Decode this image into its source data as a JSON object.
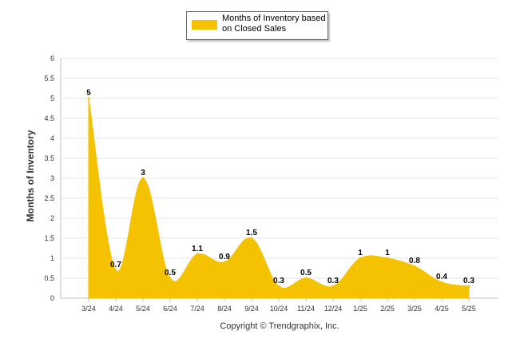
{
  "chart_data": {
    "type": "area",
    "categories": [
      "3/24",
      "4/24",
      "5/24",
      "6/24",
      "7/24",
      "8/24",
      "9/24",
      "10/24",
      "11/24",
      "12/24",
      "1/25",
      "2/25",
      "3/25",
      "4/25",
      "5/25"
    ],
    "series": [
      {
        "name": "Months of Inventory based on Closed Sales",
        "values": [
          5,
          0.7,
          3,
          0.5,
          1.1,
          0.9,
          1.5,
          0.3,
          0.5,
          0.3,
          1,
          1,
          0.8,
          0.4,
          0.3
        ]
      }
    ],
    "ylabel": "Months of Inventory",
    "xlabel": "",
    "ylim": [
      0,
      6
    ],
    "yticks": [
      "0",
      "0.5",
      "1",
      "1.5",
      "2",
      "2.5",
      "3",
      "3.5",
      "4",
      "4.5",
      "5",
      "5.5",
      "6"
    ],
    "grid": true,
    "legend_position": "top-center",
    "colors": {
      "series": "#f5c200",
      "grid": "#e6e6e6",
      "axis": "#c0c0c0",
      "text": "#000000"
    }
  },
  "legend": {
    "label": "Months of Inventory based on Closed Sales"
  },
  "footer": {
    "copyright": "Copyright © Trendgraphix, Inc."
  }
}
